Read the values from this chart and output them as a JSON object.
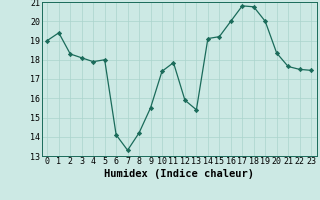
{
  "x": [
    0,
    1,
    2,
    3,
    4,
    5,
    6,
    7,
    8,
    9,
    10,
    11,
    12,
    13,
    14,
    15,
    16,
    17,
    18,
    19,
    20,
    21,
    22,
    23
  ],
  "y": [
    19.0,
    19.4,
    18.3,
    18.1,
    17.9,
    18.0,
    14.1,
    13.3,
    14.2,
    15.5,
    17.4,
    17.85,
    15.9,
    15.4,
    19.1,
    19.2,
    20.0,
    20.8,
    20.75,
    20.0,
    18.35,
    17.65,
    17.5,
    17.45
  ],
  "line_color": "#1a6b5a",
  "marker": "D",
  "marker_size": 2.2,
  "bg_color": "#cce9e4",
  "grid_color": "#aad4cc",
  "xlabel": "Humidex (Indice chaleur)",
  "xlim": [
    -0.5,
    23.5
  ],
  "ylim": [
    13,
    21
  ],
  "xticks": [
    0,
    1,
    2,
    3,
    4,
    5,
    6,
    7,
    8,
    9,
    10,
    11,
    12,
    13,
    14,
    15,
    16,
    17,
    18,
    19,
    20,
    21,
    22,
    23
  ],
  "yticks": [
    13,
    14,
    15,
    16,
    17,
    18,
    19,
    20,
    21
  ],
  "label_fontsize": 7.5,
  "tick_fontsize": 6.0
}
